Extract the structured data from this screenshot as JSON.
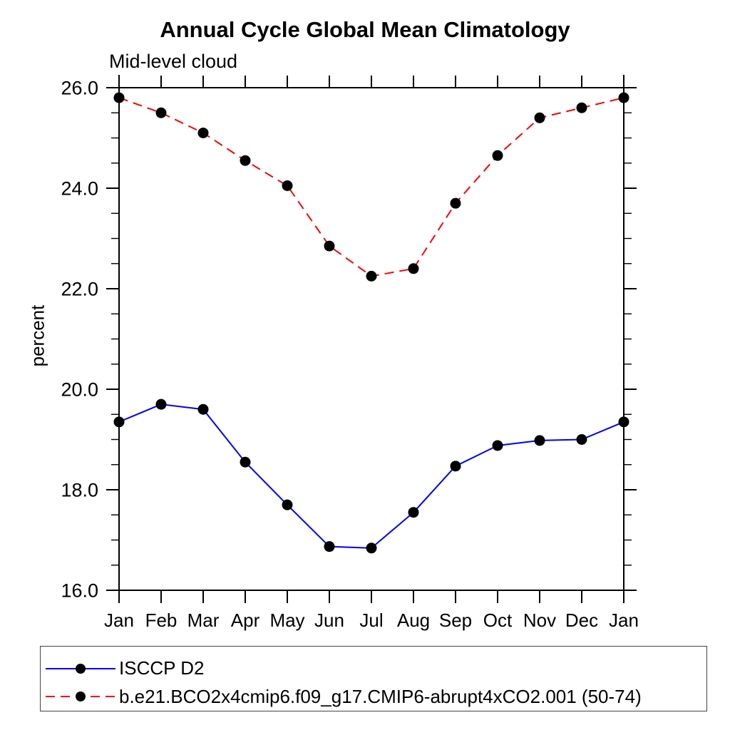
{
  "title": "Annual Cycle Global Mean Climatology",
  "subtitle": "Mid-level cloud",
  "chart_data": {
    "type": "line",
    "title": "Annual Cycle Global Mean Climatology",
    "subtitle": "Mid-level cloud",
    "xlabel": "",
    "ylabel": "percent",
    "categories": [
      "Jan",
      "Feb",
      "Mar",
      "Apr",
      "May",
      "Jun",
      "Jul",
      "Aug",
      "Sep",
      "Oct",
      "Nov",
      "Dec",
      "Jan"
    ],
    "ylim": [
      16.0,
      26.0
    ],
    "ytick_interval": 2.0,
    "ytick_minor_interval": 0.5,
    "ytick_labels": [
      "16.0",
      "18.0",
      "20.0",
      "22.0",
      "24.0",
      "26.0"
    ],
    "grid": false,
    "frame": "box-with-outward-ticks",
    "legend_position": "bottom-left-box",
    "marker": "filled-circle",
    "marker_color": "#000000",
    "series": [
      {
        "name": "ISCCP D2",
        "color": "#0000ff",
        "line_style": "solid",
        "values": [
          19.35,
          19.7,
          19.6,
          18.55,
          17.7,
          16.87,
          16.84,
          17.55,
          18.47,
          18.88,
          18.98,
          19.0,
          19.35
        ]
      },
      {
        "name": "b.e21.BCO2x4cmip6.f09_g17.CMIP6-abrupt4xCO2.001 (50-74)",
        "color": "#ff0000",
        "line_style": "dashed",
        "values": [
          25.8,
          25.5,
          25.1,
          24.55,
          24.05,
          22.85,
          22.25,
          22.4,
          23.7,
          24.65,
          25.4,
          25.6,
          25.8
        ]
      }
    ]
  }
}
